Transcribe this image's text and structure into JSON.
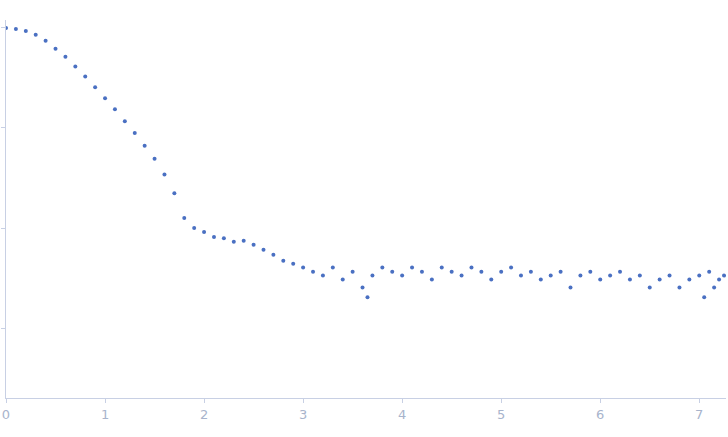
{
  "chart_data": {
    "type": "scatter",
    "color": "#4a70c2",
    "marker": "dot",
    "log": "y",
    "tick_labels": "x",
    "grid": false,
    "xlim": [
      0,
      7.27
    ],
    "ylim": [
      0.0002,
      1.2
    ],
    "xticks": [
      0,
      1,
      2,
      3,
      4,
      5,
      6,
      7
    ],
    "yticks": [
      0.001,
      0.01,
      0.1,
      1
    ],
    "x": [
      0.0,
      0.1,
      0.2,
      0.3,
      0.4,
      0.5,
      0.6,
      0.7,
      0.8,
      0.9,
      1.0,
      1.1,
      1.2,
      1.3,
      1.4,
      1.5,
      1.6,
      1.7,
      1.8,
      1.9,
      2.0,
      2.1,
      2.2,
      2.3,
      2.4,
      2.5,
      2.6,
      2.7,
      2.8,
      2.9,
      3.0,
      3.1,
      3.2,
      3.3,
      3.4,
      3.5,
      3.6,
      3.65,
      3.7,
      3.8,
      3.9,
      4.0,
      4.1,
      4.2,
      4.3,
      4.4,
      4.5,
      4.6,
      4.7,
      4.8,
      4.9,
      5.0,
      5.1,
      5.2,
      5.3,
      5.4,
      5.5,
      5.6,
      5.7,
      5.8,
      5.9,
      6.0,
      6.1,
      6.2,
      6.3,
      6.4,
      6.5,
      6.6,
      6.7,
      6.8,
      6.9,
      7.0,
      7.05,
      7.1,
      7.15,
      7.2,
      7.25
    ],
    "values": [
      1.0,
      0.977,
      0.934,
      0.853,
      0.743,
      0.62,
      0.516,
      0.411,
      0.327,
      0.255,
      0.198,
      0.154,
      0.117,
      0.0892,
      0.0664,
      0.0493,
      0.0343,
      0.0222,
      0.0126,
      0.01,
      0.00912,
      0.00814,
      0.00792,
      0.00727,
      0.00744,
      0.00679,
      0.00605,
      0.0054,
      0.00471,
      0.0044,
      0.00402,
      0.00366,
      0.00335,
      0.00402,
      0.00306,
      0.00366,
      0.00255,
      0.00203,
      0.00335,
      0.00402,
      0.00366,
      0.00335,
      0.00402,
      0.00366,
      0.00306,
      0.00402,
      0.00366,
      0.00335,
      0.00402,
      0.00366,
      0.00306,
      0.00366,
      0.00402,
      0.00335,
      0.00366,
      0.00306,
      0.00335,
      0.00366,
      0.00255,
      0.00335,
      0.00366,
      0.00306,
      0.00335,
      0.00366,
      0.00306,
      0.00335,
      0.00255,
      0.00306,
      0.00335,
      0.00255,
      0.00306,
      0.00335,
      0.00203,
      0.00366,
      0.00255,
      0.00306,
      0.00335
    ]
  }
}
